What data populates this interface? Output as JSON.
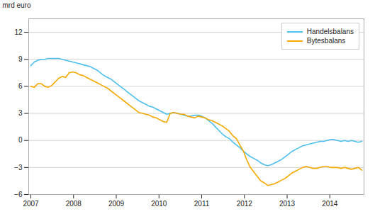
{
  "chart_data": {
    "type": "line",
    "ylabel": "mrd euro",
    "x": [
      2007,
      2007.0816,
      2007.1632,
      2007.2447,
      2007.3263,
      2007.4079,
      2007.4895,
      2007.5711,
      2007.6526,
      2007.7342,
      2007.8158,
      2007.8974,
      2007.9789,
      2008.0605,
      2008.1421,
      2008.2237,
      2008.3053,
      2008.3868,
      2008.4684,
      2008.55,
      2008.6316,
      2008.7132,
      2008.7947,
      2008.8763,
      2008.9579,
      2009.0395,
      2009.1211,
      2009.2026,
      2009.2842,
      2009.3658,
      2009.4474,
      2009.5289,
      2009.6105,
      2009.6921,
      2009.7737,
      2009.8553,
      2009.9368,
      2010.0184,
      2010.1,
      2010.1816,
      2010.2632,
      2010.3447,
      2010.4263,
      2010.5079,
      2010.5895,
      2010.6711,
      2010.7526,
      2010.8342,
      2010.9158,
      2010.9974,
      2011.0789,
      2011.1605,
      2011.2421,
      2011.3237,
      2011.4053,
      2011.4868,
      2011.5684,
      2011.65,
      2011.7316,
      2011.8132,
      2011.8947,
      2011.9763,
      2012.0579,
      2012.1395,
      2012.2211,
      2012.3026,
      2012.3842,
      2012.4658,
      2012.5474,
      2012.6289,
      2012.7105,
      2012.7921,
      2012.8737,
      2012.9553,
      2013.0368,
      2013.1184,
      2013.2,
      2013.2816,
      2013.3632,
      2013.4447,
      2013.5263,
      2013.6079,
      2013.6895,
      2013.7711,
      2013.8526,
      2013.9342,
      2014.0158,
      2014.0974,
      2014.1789,
      2014.2605,
      2014.3421,
      2014.4237,
      2014.5053,
      2014.5868,
      2014.6684,
      2014.75
    ],
    "series": [
      {
        "name": "Handelsbalans",
        "color": "#4DBFEF",
        "values": [
          8.3,
          8.7,
          8.9,
          9.0,
          9.0,
          9.1,
          9.1,
          9.1,
          9.1,
          9.0,
          8.9,
          8.8,
          8.7,
          8.6,
          8.5,
          8.4,
          8.3,
          8.2,
          8.0,
          7.8,
          7.5,
          7.2,
          7.0,
          6.8,
          6.5,
          6.2,
          5.9,
          5.6,
          5.3,
          5.0,
          4.7,
          4.4,
          4.2,
          4.0,
          3.8,
          3.7,
          3.5,
          3.3,
          3.1,
          2.9,
          3.0,
          3.1,
          3.0,
          2.9,
          2.8,
          2.7,
          2.7,
          2.8,
          2.8,
          2.7,
          2.5,
          2.2,
          1.9,
          1.5,
          1.1,
          0.7,
          0.4,
          0.2,
          -0.2,
          -0.5,
          -0.8,
          -1.2,
          -1.5,
          -1.8,
          -2.0,
          -2.2,
          -2.5,
          -2.7,
          -2.8,
          -2.7,
          -2.5,
          -2.3,
          -2.1,
          -1.8,
          -1.5,
          -1.2,
          -1.0,
          -0.8,
          -0.6,
          -0.5,
          -0.4,
          -0.3,
          -0.2,
          -0.1,
          -0.1,
          0.0,
          0.1,
          0.1,
          0.0,
          -0.1,
          0.0,
          -0.1,
          0.0,
          -0.1,
          -0.2,
          -0.1
        ]
      },
      {
        "name": "Bytesbalans",
        "color": "#F5A800",
        "values": [
          6.0,
          5.9,
          6.3,
          6.3,
          6.0,
          5.9,
          6.1,
          6.5,
          6.9,
          7.1,
          7.0,
          7.5,
          7.6,
          7.5,
          7.3,
          7.2,
          7.0,
          6.8,
          6.6,
          6.4,
          6.2,
          6.0,
          5.8,
          5.5,
          5.2,
          4.9,
          4.6,
          4.3,
          4.0,
          3.7,
          3.4,
          3.1,
          3.0,
          2.9,
          2.8,
          2.6,
          2.5,
          2.3,
          2.1,
          2.0,
          3.0,
          3.1,
          3.0,
          2.9,
          2.9,
          2.7,
          2.6,
          2.5,
          2.7,
          2.6,
          2.5,
          2.3,
          2.2,
          2.0,
          1.8,
          1.6,
          1.3,
          1.0,
          0.5,
          0.2,
          -0.5,
          -1.2,
          -2.2,
          -3.0,
          -3.5,
          -4.0,
          -4.5,
          -4.7,
          -5.0,
          -4.9,
          -4.8,
          -4.6,
          -4.4,
          -4.2,
          -3.9,
          -3.6,
          -3.4,
          -3.2,
          -3.0,
          -2.9,
          -3.0,
          -3.1,
          -3.1,
          -3.0,
          -2.9,
          -2.9,
          -3.0,
          -3.0,
          -3.0,
          -3.1,
          -3.0,
          -3.1,
          -3.2,
          -3.1,
          -3.0,
          -3.3
        ]
      }
    ],
    "xlim": [
      2006.95,
      2014.8
    ],
    "xticks": [
      2007,
      2008,
      2009,
      2010,
      2011,
      2012,
      2013,
      2014
    ],
    "ylim": [
      -6,
      13.5
    ],
    "yticks": [
      -6,
      -3,
      0,
      3,
      6,
      9,
      12
    ],
    "grid": true,
    "legend": "upper right"
  }
}
